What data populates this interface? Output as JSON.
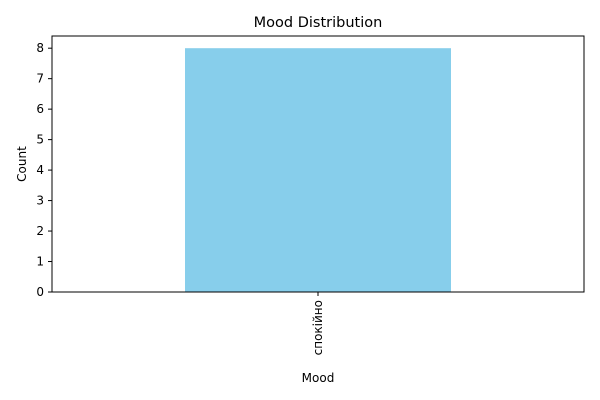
{
  "chart_data": {
    "type": "bar",
    "title": "Mood Distribution",
    "xlabel": "Mood",
    "ylabel": "Count",
    "categories": [
      "спокійно"
    ],
    "values": [
      8
    ],
    "ylim": [
      0,
      8.4
    ],
    "yticks": [
      0,
      1,
      2,
      3,
      4,
      5,
      6,
      7,
      8
    ],
    "bar_color": "#87ceeb",
    "grid": false,
    "legend": "none",
    "xtick_rotation": "vertical"
  }
}
